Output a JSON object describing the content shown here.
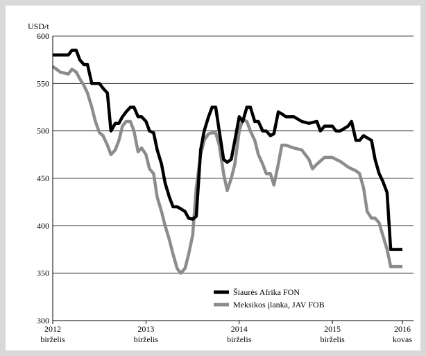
{
  "chart_data": {
    "type": "line",
    "ylabel": "USD/t",
    "ylim": [
      300,
      600
    ],
    "yticks": [
      "300",
      "350",
      "400",
      "450",
      "500",
      "550",
      "600"
    ],
    "x_axis": {
      "start": "2012-06",
      "end": "2016-03"
    },
    "xticks": [
      {
        "date": "2012-06",
        "line1": "2012",
        "line2": "birželis"
      },
      {
        "date": "2013-06",
        "line1": "2013",
        "line2": "birželis"
      },
      {
        "date": "2014-06",
        "line1": "2014",
        "line2": "birželis"
      },
      {
        "date": "2015-06",
        "line1": "2015",
        "line2": "birželis"
      },
      {
        "date": "2016-03",
        "line1": "2016",
        "line2": "kovas"
      }
    ],
    "grid": "horizontal",
    "legend_position": "bottom-center",
    "series": [
      {
        "name": "Šiaurės Afrika FON",
        "color": "#000000",
        "points": [
          [
            "2012-06-01",
            580
          ],
          [
            "2012-07-01",
            580
          ],
          [
            "2012-08-01",
            580
          ],
          [
            "2012-08-15",
            585
          ],
          [
            "2012-09-01",
            585
          ],
          [
            "2012-09-15",
            575
          ],
          [
            "2012-10-01",
            570
          ],
          [
            "2012-10-15",
            570
          ],
          [
            "2012-11-01",
            550
          ],
          [
            "2012-11-15",
            550
          ],
          [
            "2012-12-01",
            550
          ],
          [
            "2012-12-15",
            545
          ],
          [
            "2013-01-01",
            540
          ],
          [
            "2013-01-15",
            500
          ],
          [
            "2013-02-01",
            508
          ],
          [
            "2013-02-15",
            508
          ],
          [
            "2013-03-01",
            515
          ],
          [
            "2013-03-15",
            520
          ],
          [
            "2013-04-01",
            525
          ],
          [
            "2013-04-15",
            525
          ],
          [
            "2013-05-01",
            515
          ],
          [
            "2013-05-15",
            515
          ],
          [
            "2013-06-01",
            510
          ],
          [
            "2013-06-15",
            500
          ],
          [
            "2013-07-01",
            498
          ],
          [
            "2013-07-15",
            480
          ],
          [
            "2013-08-01",
            465
          ],
          [
            "2013-08-15",
            445
          ],
          [
            "2013-09-01",
            430
          ],
          [
            "2013-09-15",
            420
          ],
          [
            "2013-10-01",
            420
          ],
          [
            "2013-10-15",
            418
          ],
          [
            "2013-11-01",
            415
          ],
          [
            "2013-11-15",
            408
          ],
          [
            "2013-12-01",
            407
          ],
          [
            "2013-12-15",
            410
          ],
          [
            "2014-01-01",
            480
          ],
          [
            "2014-01-15",
            500
          ],
          [
            "2014-02-01",
            515
          ],
          [
            "2014-02-15",
            525
          ],
          [
            "2014-03-01",
            525
          ],
          [
            "2014-03-15",
            500
          ],
          [
            "2014-04-01",
            470
          ],
          [
            "2014-04-15",
            467
          ],
          [
            "2014-05-01",
            470
          ],
          [
            "2014-05-15",
            490
          ],
          [
            "2014-06-01",
            515
          ],
          [
            "2014-06-15",
            510
          ],
          [
            "2014-07-01",
            525
          ],
          [
            "2014-07-15",
            525
          ],
          [
            "2014-08-01",
            510
          ],
          [
            "2014-08-15",
            510
          ],
          [
            "2014-09-01",
            500
          ],
          [
            "2014-09-15",
            500
          ],
          [
            "2014-10-01",
            495
          ],
          [
            "2014-10-15",
            497
          ],
          [
            "2014-11-01",
            520
          ],
          [
            "2014-11-15",
            518
          ],
          [
            "2014-12-01",
            515
          ],
          [
            "2015-01-01",
            515
          ],
          [
            "2015-02-01",
            510
          ],
          [
            "2015-03-01",
            508
          ],
          [
            "2015-04-01",
            510
          ],
          [
            "2015-04-15",
            500
          ],
          [
            "2015-05-01",
            505
          ],
          [
            "2015-06-01",
            505
          ],
          [
            "2015-06-15",
            500
          ],
          [
            "2015-07-01",
            500
          ],
          [
            "2015-08-01",
            505
          ],
          [
            "2015-08-15",
            510
          ],
          [
            "2015-09-01",
            490
          ],
          [
            "2015-09-15",
            490
          ],
          [
            "2015-10-01",
            495
          ],
          [
            "2015-11-01",
            490
          ],
          [
            "2015-11-15",
            470
          ],
          [
            "2015-12-01",
            455
          ],
          [
            "2015-12-15",
            447
          ],
          [
            "2016-01-01",
            435
          ],
          [
            "2016-01-15",
            375
          ],
          [
            "2016-02-01",
            375
          ],
          [
            "2016-03-01",
            375
          ]
        ]
      },
      {
        "name": "Meksikos įlanka, JAV FOB",
        "color": "#8c8c8c",
        "points": [
          [
            "2012-06-01",
            568
          ],
          [
            "2012-07-01",
            562
          ],
          [
            "2012-08-01",
            560
          ],
          [
            "2012-08-15",
            565
          ],
          [
            "2012-09-01",
            562
          ],
          [
            "2012-09-15",
            555
          ],
          [
            "2012-10-01",
            548
          ],
          [
            "2012-10-15",
            540
          ],
          [
            "2012-11-01",
            525
          ],
          [
            "2012-11-15",
            510
          ],
          [
            "2012-12-01",
            498
          ],
          [
            "2012-12-15",
            495
          ],
          [
            "2013-01-01",
            485
          ],
          [
            "2013-01-15",
            475
          ],
          [
            "2013-02-01",
            480
          ],
          [
            "2013-02-15",
            490
          ],
          [
            "2013-03-01",
            505
          ],
          [
            "2013-03-15",
            510
          ],
          [
            "2013-04-01",
            510
          ],
          [
            "2013-04-15",
            500
          ],
          [
            "2013-05-01",
            478
          ],
          [
            "2013-05-15",
            482
          ],
          [
            "2013-06-01",
            475
          ],
          [
            "2013-06-15",
            460
          ],
          [
            "2013-07-01",
            455
          ],
          [
            "2013-07-15",
            430
          ],
          [
            "2013-08-01",
            415
          ],
          [
            "2013-08-15",
            400
          ],
          [
            "2013-09-01",
            385
          ],
          [
            "2013-09-15",
            370
          ],
          [
            "2013-10-01",
            355
          ],
          [
            "2013-10-15",
            350
          ],
          [
            "2013-11-01",
            355
          ],
          [
            "2013-11-15",
            370
          ],
          [
            "2013-12-01",
            390
          ],
          [
            "2013-12-15",
            440
          ],
          [
            "2014-01-01",
            475
          ],
          [
            "2014-01-15",
            490
          ],
          [
            "2014-02-01",
            497
          ],
          [
            "2014-02-15",
            498
          ],
          [
            "2014-03-01",
            498
          ],
          [
            "2014-03-15",
            485
          ],
          [
            "2014-04-01",
            455
          ],
          [
            "2014-04-15",
            437
          ],
          [
            "2014-05-01",
            450
          ],
          [
            "2014-05-15",
            465
          ],
          [
            "2014-06-01",
            500
          ],
          [
            "2014-06-15",
            512
          ],
          [
            "2014-07-01",
            510
          ],
          [
            "2014-07-15",
            500
          ],
          [
            "2014-08-01",
            490
          ],
          [
            "2014-08-15",
            475
          ],
          [
            "2014-09-01",
            465
          ],
          [
            "2014-09-15",
            455
          ],
          [
            "2014-10-01",
            455
          ],
          [
            "2014-10-15",
            443
          ],
          [
            "2014-11-01",
            465
          ],
          [
            "2014-11-15",
            485
          ],
          [
            "2014-12-01",
            485
          ],
          [
            "2015-01-01",
            482
          ],
          [
            "2015-02-01",
            480
          ],
          [
            "2015-03-01",
            470
          ],
          [
            "2015-03-15",
            460
          ],
          [
            "2015-04-01",
            465
          ],
          [
            "2015-05-01",
            472
          ],
          [
            "2015-06-01",
            472
          ],
          [
            "2015-06-15",
            470
          ],
          [
            "2015-07-01",
            468
          ],
          [
            "2015-08-01",
            462
          ],
          [
            "2015-08-15",
            460
          ],
          [
            "2015-09-01",
            458
          ],
          [
            "2015-09-15",
            455
          ],
          [
            "2015-10-01",
            440
          ],
          [
            "2015-10-15",
            415
          ],
          [
            "2015-11-01",
            408
          ],
          [
            "2015-11-15",
            408
          ],
          [
            "2015-12-01",
            403
          ],
          [
            "2015-12-15",
            390
          ],
          [
            "2016-01-01",
            375
          ],
          [
            "2016-01-15",
            357
          ],
          [
            "2016-02-01",
            357
          ],
          [
            "2016-03-01",
            357
          ]
        ]
      }
    ]
  }
}
